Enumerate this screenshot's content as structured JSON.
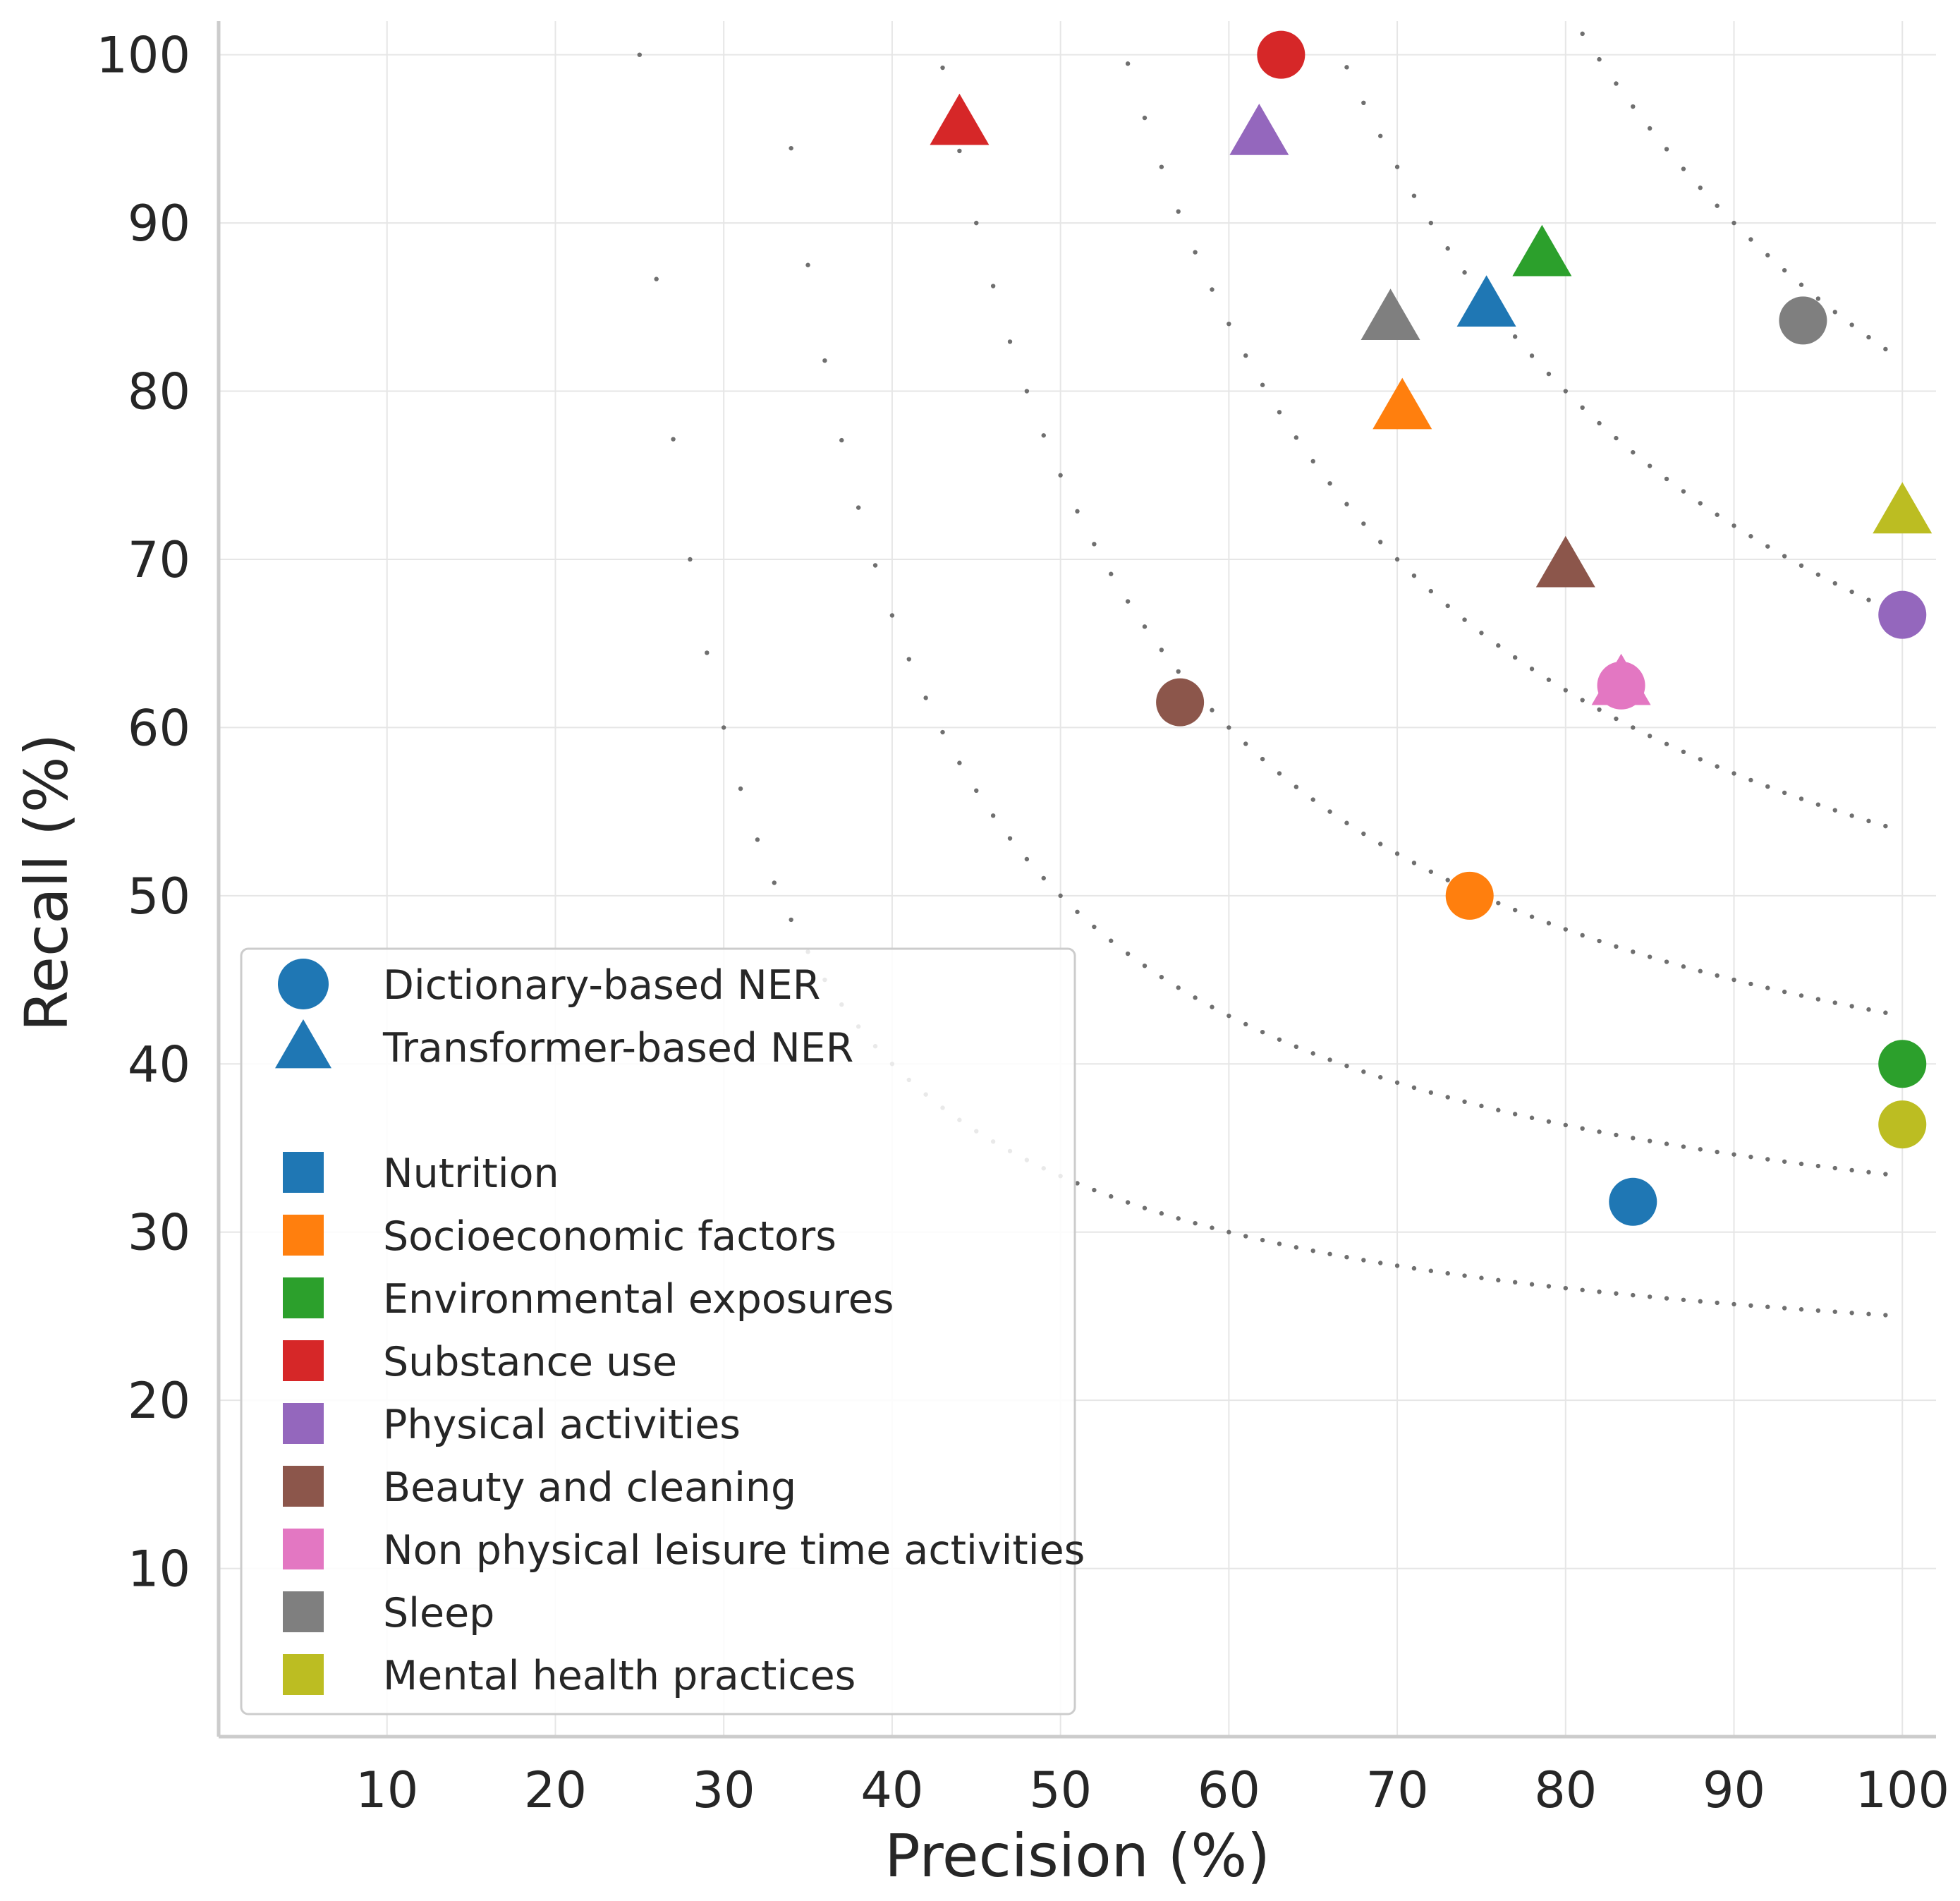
{
  "chart_data": {
    "type": "scatter",
    "title": "",
    "xlabel": "Precision (%)",
    "ylabel": "Recall (%)",
    "xlim": [
      0,
      102
    ],
    "ylim": [
      0,
      102
    ],
    "xticks": [
      10,
      20,
      30,
      40,
      50,
      60,
      70,
      80,
      90,
      100
    ],
    "yticks": [
      10,
      20,
      30,
      40,
      50,
      60,
      70,
      80,
      90,
      100
    ],
    "grid": true,
    "legend_position": "lower-left",
    "iso_f1_curves": [
      0.4,
      0.5,
      0.6,
      0.7,
      0.8,
      0.9
    ],
    "methods": [
      {
        "name": "Dictionary-based NER",
        "marker": "circle"
      },
      {
        "name": "Transformer-based NER",
        "marker": "triangle"
      }
    ],
    "categories": [
      {
        "name": "Nutrition",
        "color": "#1f77b4"
      },
      {
        "name": "Socioeconomic factors",
        "color": "#ff7f0e"
      },
      {
        "name": "Environmental exposures",
        "color": "#2ca02c"
      },
      {
        "name": "Substance use",
        "color": "#d62728"
      },
      {
        "name": "Physical activities",
        "color": "#9467bd"
      },
      {
        "name": "Beauty and cleaning",
        "color": "#8c564b"
      },
      {
        "name": "Non physical leisure time activities",
        "color": "#e377c2"
      },
      {
        "name": "Sleep",
        "color": "#7f7f7f"
      },
      {
        "name": "Mental health practices",
        "color": "#bcbd22"
      }
    ],
    "points": [
      {
        "category": "Nutrition",
        "method": "circle",
        "x": 84.0,
        "y": 31.8
      },
      {
        "category": "Nutrition",
        "method": "triangle",
        "x": 75.3,
        "y": 85.0
      },
      {
        "category": "Socioeconomic factors",
        "method": "circle",
        "x": 74.3,
        "y": 50.0
      },
      {
        "category": "Socioeconomic factors",
        "method": "triangle",
        "x": 70.3,
        "y": 78.9
      },
      {
        "category": "Environmental exposures",
        "method": "circle",
        "x": 100.0,
        "y": 40.0
      },
      {
        "category": "Environmental exposures",
        "method": "triangle",
        "x": 78.6,
        "y": 88.0
      },
      {
        "category": "Substance use",
        "method": "circle",
        "x": 63.1,
        "y": 100.0
      },
      {
        "category": "Substance use",
        "method": "triangle",
        "x": 44.0,
        "y": 95.8
      },
      {
        "category": "Physical activities",
        "method": "circle",
        "x": 100.0,
        "y": 66.7
      },
      {
        "category": "Physical activities",
        "method": "triangle",
        "x": 61.8,
        "y": 95.2
      },
      {
        "category": "Beauty and cleaning",
        "method": "circle",
        "x": 57.1,
        "y": 61.5
      },
      {
        "category": "Beauty and cleaning",
        "method": "triangle",
        "x": 80.0,
        "y": 69.5
      },
      {
        "category": "Non physical leisure time activities",
        "method": "circle",
        "x": 83.3,
        "y": 62.5
      },
      {
        "category": "Non physical leisure time activities",
        "method": "triangle",
        "x": 83.3,
        "y": 62.5
      },
      {
        "category": "Sleep",
        "method": "circle",
        "x": 94.1,
        "y": 84.2
      },
      {
        "category": "Sleep",
        "method": "triangle",
        "x": 69.6,
        "y": 84.2
      },
      {
        "category": "Mental health practices",
        "method": "circle",
        "x": 100.0,
        "y": 36.4
      },
      {
        "category": "Mental health practices",
        "method": "triangle",
        "x": 100.0,
        "y": 72.7
      }
    ]
  }
}
